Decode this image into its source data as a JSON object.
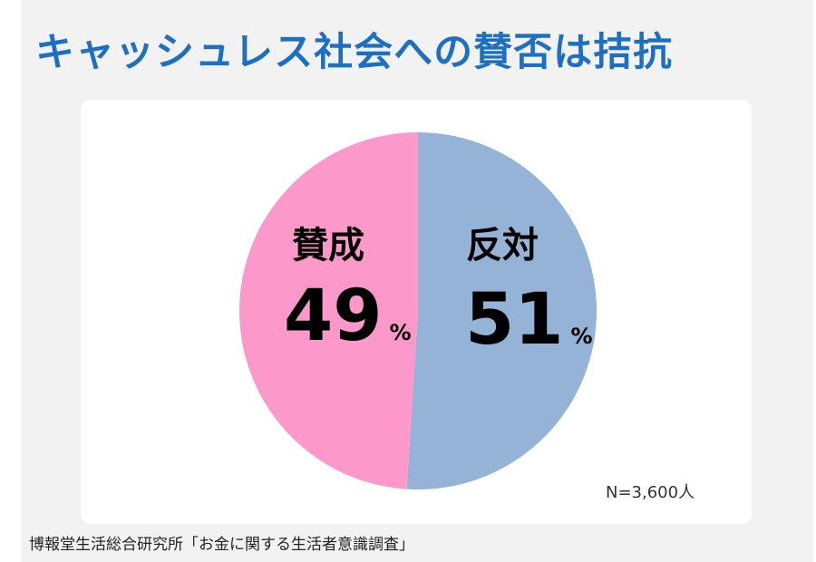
{
  "title": "キャッシュレス社会への賛否は拮抗",
  "chart_data": {
    "type": "pie",
    "title": "",
    "categories": [
      "賛成",
      "反対"
    ],
    "values": [
      49,
      51
    ],
    "unit": "%",
    "colors": [
      "#fd98ca",
      "#95b3d7"
    ],
    "legend": "none (labels inside slices)"
  },
  "sample_note": "N=3,600人",
  "source": "博報堂生活総合研究所「お金に関する生活者意識調査」"
}
